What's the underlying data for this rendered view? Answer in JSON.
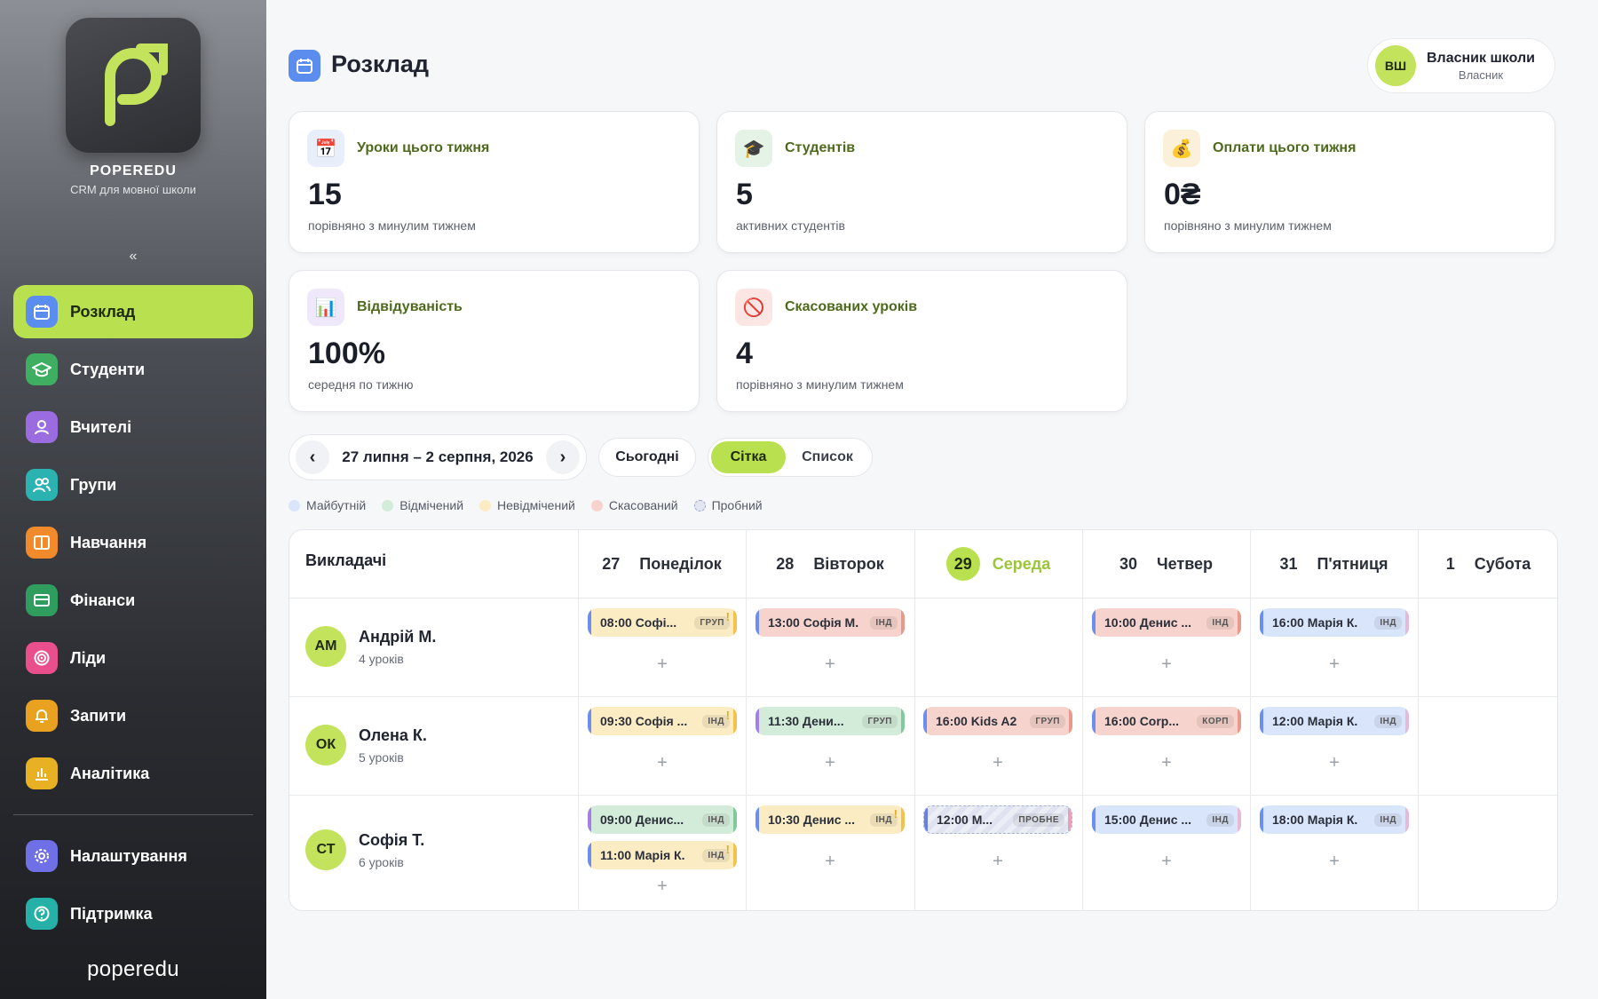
{
  "brand": {
    "name": "POPEREDU",
    "subtitle": "CRM для мовної школи",
    "footer": "poperedu"
  },
  "sidebar": {
    "collapse": "«",
    "items": [
      {
        "label": "Розклад",
        "icon": "calendar-icon",
        "color": "#5b8def",
        "active": true
      },
      {
        "label": "Студенти",
        "icon": "graduation-cap-icon",
        "color": "#3fae63"
      },
      {
        "label": "Вчителі",
        "icon": "user-icon",
        "color": "#9b6be0"
      },
      {
        "label": "Групи",
        "icon": "users-icon",
        "color": "#2bb3b1"
      },
      {
        "label": "Навчання",
        "icon": "book-icon",
        "color": "#f08a2a"
      },
      {
        "label": "Фінанси",
        "icon": "credit-card-icon",
        "color": "#2f9d5e"
      },
      {
        "label": "Ліди",
        "icon": "target-icon",
        "color": "#ea4f8d"
      },
      {
        "label": "Запити",
        "icon": "bell-icon",
        "color": "#e8a21f"
      },
      {
        "label": "Аналітика",
        "icon": "chart-icon",
        "color": "#e8b023"
      }
    ],
    "bottom_items": [
      {
        "label": "Налаштування",
        "icon": "gear-icon",
        "color": "#6f6fe6"
      },
      {
        "label": "Підтримка",
        "icon": "help-icon",
        "color": "#25b0a8"
      }
    ]
  },
  "header": {
    "title": "Розклад"
  },
  "user": {
    "initials": "ВШ",
    "name": "Власник школи",
    "role": "Власник"
  },
  "stats": [
    {
      "title": "Уроки цього тижня",
      "value": "15",
      "sub": "порівняно з минулим тижнем",
      "icon": "calendar-page-icon",
      "glyph": "📅",
      "bg": "#e9eefb"
    },
    {
      "title": "Студентів",
      "value": "5",
      "sub": "активних студентів",
      "icon": "graduation-cap-icon",
      "glyph": "🎓",
      "bg": "#e4f3e6"
    },
    {
      "title": "Оплати цього тижня",
      "value": "0₴",
      "sub": "порівняно з минулим тижнем",
      "icon": "money-bag-icon",
      "glyph": "💰",
      "bg": "#fbf0d9"
    },
    {
      "title": "Відвідуваність",
      "value": "100%",
      "sub": "середня по тижню",
      "icon": "bar-chart-icon",
      "glyph": "📊",
      "bg": "#efe8fb"
    },
    {
      "title": "Скасованих уроків",
      "value": "4",
      "sub": "порівняно з минулим тижнем",
      "icon": "prohibited-icon",
      "glyph": "🚫",
      "bg": "#fbe6e4"
    }
  ],
  "controls": {
    "prev": "‹",
    "next": "›",
    "date_range": "27 липня – 2 серпня, 2026",
    "today": "Сьогодні",
    "view_grid": "Сітка",
    "view_list": "Список"
  },
  "legend": [
    {
      "label": "Майбутній",
      "color": "#d9e5fb"
    },
    {
      "label": "Відмічений",
      "color": "#d3ecd9"
    },
    {
      "label": "Невідмічений",
      "color": "#fbecc3"
    },
    {
      "label": "Скасований",
      "color": "#f6d3cc"
    },
    {
      "label": "Пробний",
      "color": "#e3e6f0"
    }
  ],
  "schedule": {
    "teachers_header": "Викладачі",
    "days": [
      {
        "num": "27",
        "name": "Понеділок"
      },
      {
        "num": "28",
        "name": "Вівторок"
      },
      {
        "num": "29",
        "name": "Середа",
        "today": true
      },
      {
        "num": "30",
        "name": "Четвер"
      },
      {
        "num": "31",
        "name": "П'ятниця"
      },
      {
        "num": "1",
        "name": "Субота"
      }
    ],
    "teachers": [
      {
        "initials": "АМ",
        "name": "Андрій М.",
        "count": "4 уроків"
      },
      {
        "initials": "ОК",
        "name": "Олена К.",
        "count": "5 уроків"
      },
      {
        "initials": "СТ",
        "name": "Софія Т.",
        "count": "6 уроків"
      }
    ],
    "add": "+",
    "warn": "!",
    "lessons": {
      "r0d0": {
        "text": "08:00 Софі...",
        "tag": "ГРУП"
      },
      "r0d1": {
        "text": "13:00 Софія М.",
        "tag": "ІНД"
      },
      "r0d3": {
        "text": "10:00 Денис ...",
        "tag": "ІНД"
      },
      "r0d4": {
        "text": "16:00 Марія К.",
        "tag": "ІНД"
      },
      "r1d0": {
        "text": "09:30 Софія ...",
        "tag": "ІНД"
      },
      "r1d1": {
        "text": "11:30 Дени...",
        "tag": "ГРУП"
      },
      "r1d2": {
        "text": "16:00 Kids A2",
        "tag": "ГРУП"
      },
      "r1d3": {
        "text": "16:00 Corp...",
        "tag": "КОРП"
      },
      "r1d4": {
        "text": "12:00 Марія К.",
        "tag": "ІНД"
      },
      "r2d0a": {
        "text": "09:00 Денис...",
        "tag": "ІНД"
      },
      "r2d0b": {
        "text": "11:00 Марія К.",
        "tag": "ІНД"
      },
      "r2d1": {
        "text": "10:30 Денис ...",
        "tag": "ІНД"
      },
      "r2d2": {
        "text": "12:00 М...",
        "tag": "ПРОБНЕ"
      },
      "r2d3": {
        "text": "15:00 Денис ...",
        "tag": "ІНД"
      },
      "r2d4": {
        "text": "18:00 Марія К.",
        "tag": "ІНД"
      }
    }
  }
}
